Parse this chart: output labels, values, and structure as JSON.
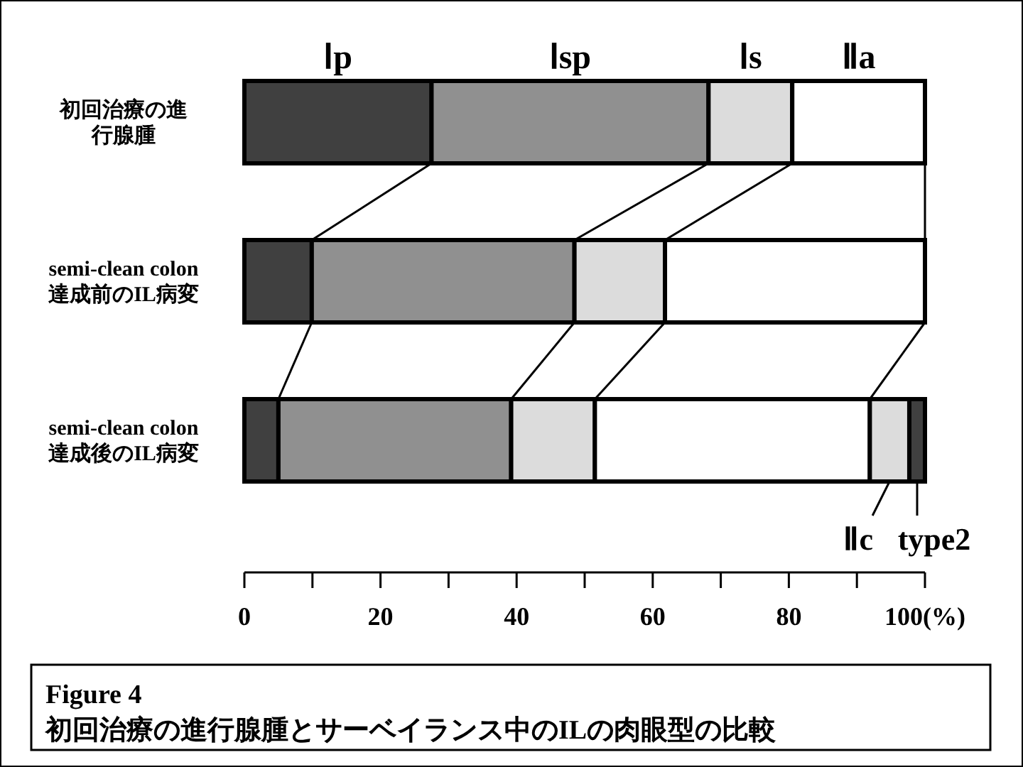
{
  "chart_data": {
    "type": "bar",
    "orientation": "horizontal",
    "stacked": true,
    "title": "Figure 4",
    "subtitle": "初回治療の進行腺腫とサーベイランス中のILの肉眼型の比較",
    "categories": [
      "初回治療の進行腺腫",
      "semi-clean colon\n達成前のIL病変",
      "semi-clean colon\n達成後のIL病変"
    ],
    "series": [
      {
        "name": "Ⅰp",
        "color": "#404040",
        "values": [
          27.5,
          9.9,
          5.0
        ]
      },
      {
        "name": "Ⅰsp",
        "color": "#909090",
        "values": [
          40.7,
          38.6,
          34.2
        ]
      },
      {
        "name": "Ⅰs",
        "color": "#dcdcdc",
        "values": [
          12.3,
          13.3,
          12.3
        ]
      },
      {
        "name": "Ⅱa",
        "color": "#ffffff",
        "values": [
          19.5,
          38.2,
          40.4
        ]
      },
      {
        "name": "Ⅱc",
        "color": "#dcdcdc",
        "values": [
          null,
          null,
          5.8
        ]
      },
      {
        "name": "type2",
        "color": "#404040",
        "values": [
          null,
          null,
          2.3
        ]
      }
    ],
    "xlim": [
      0,
      100
    ],
    "xticks": [
      0,
      {
        "value": 10,
        "label": null
      },
      20,
      {
        "value": 30,
        "label": null
      },
      40,
      {
        "value": 50,
        "label": null
      },
      60,
      {
        "value": 70,
        "label": null
      },
      80,
      {
        "value": 90,
        "label": null
      },
      {
        "value": 100,
        "label": "100(%)"
      }
    ],
    "legend": "bottom right"
  }
}
